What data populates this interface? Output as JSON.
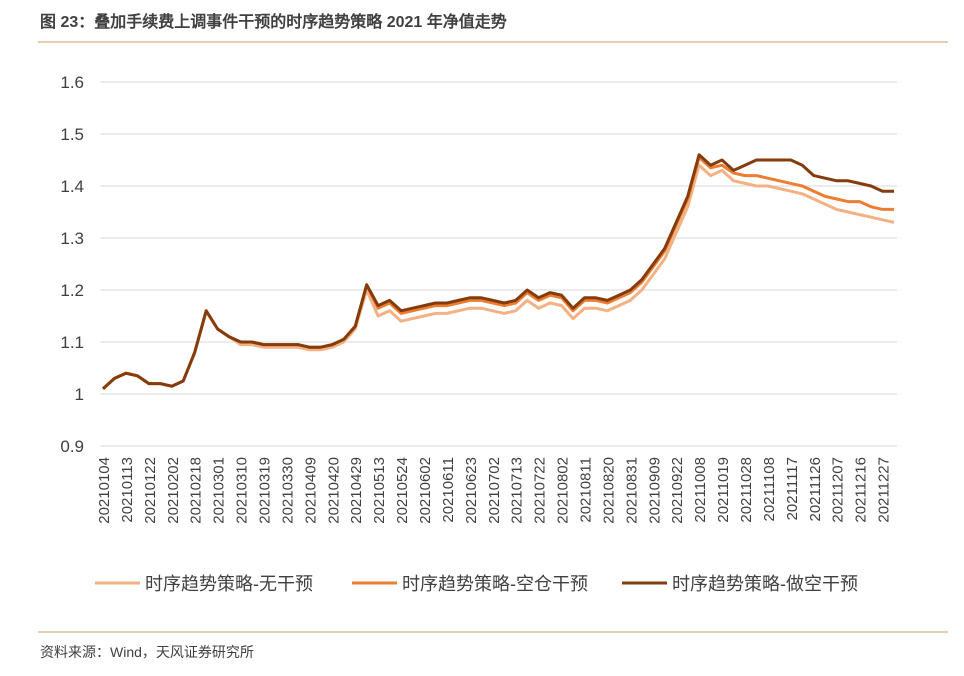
{
  "chart_data": {
    "type": "line",
    "title": "图 23：叠加手续费上调事件干预的时序趋势策略 2021 年净值走势",
    "source": "资料来源：Wind，天风证券研究所",
    "categories": [
      "20210104",
      null,
      "20210113",
      null,
      "20210122",
      null,
      "20210202",
      null,
      "20210218",
      null,
      "20210301",
      null,
      "20210310",
      null,
      "20210319",
      null,
      "20210330",
      null,
      "20210409",
      null,
      "20210420",
      null,
      "20210429",
      null,
      "20210513",
      null,
      "20210524",
      null,
      "20210602",
      null,
      "20210611",
      null,
      "20210623",
      null,
      "20210702",
      null,
      "20210713",
      null,
      "20210722",
      null,
      "20210802",
      null,
      "20210811",
      null,
      "20210820",
      null,
      "20210831",
      null,
      "20210909",
      null,
      "20210922",
      null,
      "20211008",
      null,
      "20211019",
      null,
      "20211028",
      null,
      "20211108",
      null,
      "20211117",
      null,
      "20211126",
      null,
      "20211207",
      null,
      "20211216",
      null,
      "20211227",
      null
    ],
    "series": [
      {
        "name": "时序趋势策略-无干预",
        "color": "#f4b183",
        "values": [
          1.01,
          1.03,
          1.04,
          1.035,
          1.02,
          1.02,
          1.015,
          1.025,
          1.08,
          1.16,
          1.125,
          1.11,
          1.095,
          1.095,
          1.09,
          1.09,
          1.09,
          1.09,
          1.085,
          1.085,
          1.09,
          1.1,
          1.125,
          1.2,
          1.15,
          1.16,
          1.14,
          1.145,
          1.15,
          1.155,
          1.155,
          1.16,
          1.165,
          1.165,
          1.16,
          1.155,
          1.16,
          1.18,
          1.165,
          1.175,
          1.17,
          1.145,
          1.165,
          1.165,
          1.16,
          1.17,
          1.18,
          1.2,
          1.23,
          1.26,
          1.31,
          1.36,
          1.44,
          1.42,
          1.43,
          1.41,
          1.405,
          1.4,
          1.4,
          1.395,
          1.39,
          1.385,
          1.375,
          1.365,
          1.355,
          1.35,
          1.345,
          1.34,
          1.335,
          1.33
        ]
      },
      {
        "name": "时序趋势策略-空仓干预",
        "color": "#ed7d31",
        "values": [
          1.01,
          1.03,
          1.04,
          1.035,
          1.02,
          1.02,
          1.015,
          1.025,
          1.08,
          1.16,
          1.125,
          1.11,
          1.1,
          1.1,
          1.095,
          1.095,
          1.095,
          1.095,
          1.09,
          1.09,
          1.095,
          1.105,
          1.13,
          1.21,
          1.165,
          1.175,
          1.155,
          1.16,
          1.165,
          1.17,
          1.17,
          1.175,
          1.18,
          1.18,
          1.175,
          1.17,
          1.175,
          1.195,
          1.18,
          1.19,
          1.185,
          1.16,
          1.18,
          1.18,
          1.175,
          1.185,
          1.195,
          1.215,
          1.245,
          1.275,
          1.325,
          1.375,
          1.455,
          1.435,
          1.44,
          1.425,
          1.42,
          1.42,
          1.415,
          1.41,
          1.405,
          1.4,
          1.39,
          1.38,
          1.375,
          1.37,
          1.37,
          1.36,
          1.355,
          1.355
        ]
      },
      {
        "name": "时序趋势策略-做空干预",
        "color": "#843c0c",
        "values": [
          1.01,
          1.03,
          1.04,
          1.035,
          1.02,
          1.02,
          1.015,
          1.025,
          1.08,
          1.16,
          1.125,
          1.11,
          1.1,
          1.1,
          1.095,
          1.095,
          1.095,
          1.095,
          1.09,
          1.09,
          1.095,
          1.105,
          1.13,
          1.21,
          1.17,
          1.18,
          1.16,
          1.165,
          1.17,
          1.175,
          1.175,
          1.18,
          1.185,
          1.185,
          1.18,
          1.175,
          1.18,
          1.2,
          1.185,
          1.195,
          1.19,
          1.165,
          1.185,
          1.185,
          1.18,
          1.19,
          1.2,
          1.22,
          1.25,
          1.28,
          1.33,
          1.38,
          1.46,
          1.44,
          1.45,
          1.43,
          1.44,
          1.45,
          1.45,
          1.45,
          1.45,
          1.44,
          1.42,
          1.415,
          1.41,
          1.41,
          1.405,
          1.4,
          1.39,
          1.39
        ]
      }
    ],
    "ylim": [
      0.9,
      1.6
    ],
    "yticks": [
      0.9,
      1,
      1.1,
      1.2,
      1.3,
      1.4,
      1.5,
      1.6
    ],
    "grid": true
  }
}
